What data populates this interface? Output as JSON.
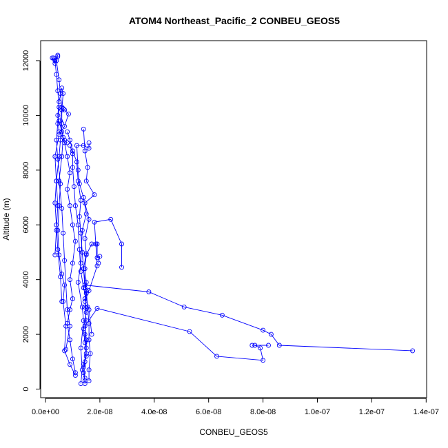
{
  "chart_data": {
    "type": "line",
    "title": "ATOM4 Northeast_Pacific_2 CONBEU_GEOS5",
    "xlabel": "CONBEU_GEOS5",
    "ylabel": "Altitude (m)",
    "xlim": [
      0,
      1.4e-07
    ],
    "ylim": [
      0,
      12000
    ],
    "xticks": [
      0,
      2e-08,
      4e-08,
      6e-08,
      8e-08,
      1e-07,
      1.2e-07,
      1.4e-07
    ],
    "xtick_labels": [
      "0.0e+00",
      "2.0e-08",
      "4.0e-08",
      "6.0e-08",
      "8.0e-08",
      "1.0e-07",
      "1.2e-07",
      "1.4e-07"
    ],
    "yticks": [
      0,
      2000,
      4000,
      6000,
      8000,
      10000,
      12000
    ],
    "ytick_labels": [
      "0",
      "2000",
      "4000",
      "6000",
      "8000",
      "10000",
      "12000"
    ],
    "color": "#0000ff",
    "marker": "open-circle",
    "series": [
      {
        "points": [
          [
            1.45e-08,
            200
          ],
          [
            1.45e-08,
            300
          ],
          [
            1.4e-08,
            600
          ],
          [
            1.45e-08,
            1000
          ],
          [
            1.5e-08,
            1500
          ],
          [
            1.45e-08,
            2000
          ],
          [
            1.5e-08,
            2500
          ],
          [
            1.45e-08,
            3000
          ],
          [
            1.5e-08,
            3500
          ],
          [
            1.45e-08,
            3800
          ],
          [
            3.8e-08,
            3550
          ],
          [
            5.1e-08,
            3000
          ],
          [
            6.5e-08,
            2700
          ],
          [
            8e-08,
            2150
          ],
          [
            8.3e-08,
            2000
          ],
          [
            8.6e-08,
            1600
          ],
          [
            1.35e-07,
            1400
          ]
        ]
      },
      {
        "points": [
          [
            1.45e-08,
            400
          ],
          [
            1.4e-08,
            900
          ],
          [
            1.5e-08,
            1300
          ],
          [
            1.5e-08,
            1800
          ],
          [
            1.45e-08,
            2300
          ],
          [
            1.9e-08,
            2950
          ],
          [
            5.3e-08,
            2100
          ],
          [
            6.3e-08,
            1200
          ],
          [
            8e-08,
            1050
          ],
          [
            7.9e-08,
            1500
          ],
          [
            7.7e-08,
            1600
          ],
          [
            7.6e-08,
            1600
          ],
          [
            8.2e-08,
            1600
          ]
        ]
      },
      {
        "points": [
          [
            1.4e-08,
            800
          ],
          [
            1.5e-08,
            1200
          ],
          [
            1.45e-08,
            1700
          ],
          [
            1.4e-08,
            2200
          ],
          [
            1.5e-08,
            2800
          ],
          [
            1.45e-08,
            3300
          ],
          [
            1.5e-08,
            3900
          ],
          [
            1.45e-08,
            4400
          ],
          [
            1.5e-08,
            4900
          ],
          [
            1.7e-08,
            5300
          ],
          [
            1.9e-08,
            5300
          ],
          [
            1.9e-08,
            4800
          ],
          [
            2e-08,
            4850
          ],
          [
            1.95e-08,
            4600
          ]
        ]
      },
      {
        "points": [
          [
            1.45e-08,
            3200
          ],
          [
            1.6e-08,
            3600
          ],
          [
            1.9e-08,
            4500
          ],
          [
            1.85e-08,
            5300
          ],
          [
            1.8e-08,
            6100
          ],
          [
            2.4e-08,
            6200
          ],
          [
            2.8e-08,
            5300
          ],
          [
            2.8e-08,
            4450
          ]
        ]
      },
      {
        "points": [
          [
            1.45e-08,
            3700
          ],
          [
            1.4e-08,
            4400
          ],
          [
            1.5e-08,
            4950
          ],
          [
            1.45e-08,
            5500
          ],
          [
            1.6e-08,
            6200
          ],
          [
            1.45e-08,
            6800
          ],
          [
            1.8e-08,
            7100
          ],
          [
            1.5e-08,
            7600
          ],
          [
            1.55e-08,
            8100
          ],
          [
            1.45e-08,
            8700
          ],
          [
            1.4e-08,
            9500
          ]
        ]
      },
      {
        "points": [
          [
            1.3e-08,
            200
          ],
          [
            1.35e-08,
            700
          ],
          [
            1.3e-08,
            1500
          ],
          [
            1.4e-08,
            2500
          ],
          [
            1.35e-08,
            3000
          ],
          [
            1.2e-08,
            3900
          ],
          [
            1.3e-08,
            4600
          ],
          [
            1.35e-08,
            5800
          ],
          [
            1.5e-08,
            6400
          ],
          [
            1.4e-08,
            7000
          ],
          [
            1.25e-08,
            7500
          ],
          [
            1.2e-08,
            8000
          ],
          [
            1.15e-08,
            8900
          ],
          [
            1.4e-08,
            8900
          ],
          [
            1.6e-08,
            8800
          ],
          [
            1.6e-08,
            9000
          ]
        ]
      },
      {
        "points": [
          [
            1.6e-08,
            300
          ],
          [
            1.6e-08,
            700
          ],
          [
            1.65e-08,
            1300
          ],
          [
            1.6e-08,
            1800
          ],
          [
            1.6e-08,
            2400
          ],
          [
            1.55e-08,
            3000
          ],
          [
            1.5e-08,
            3600
          ],
          [
            1.4e-08,
            4400
          ],
          [
            1.35e-08,
            5000
          ],
          [
            1.3e-08,
            5700
          ],
          [
            1.25e-08,
            6300
          ],
          [
            1.3e-08,
            6900
          ],
          [
            1.2e-08,
            7600
          ],
          [
            1.15e-08,
            8300
          ],
          [
            1e-08,
            8700
          ],
          [
            9e-09,
            9100
          ],
          [
            8e-09,
            9400
          ]
        ]
      },
      {
        "points": [
          [
            1.1e-08,
            600
          ],
          [
            1e-08,
            1100
          ],
          [
            9e-09,
            1800
          ],
          [
            8e-09,
            2400
          ],
          [
            9e-09,
            2900
          ],
          [
            1e-08,
            3300
          ],
          [
            9e-09,
            4000
          ],
          [
            1e-08,
            4600
          ],
          [
            1.1e-08,
            5400
          ],
          [
            1e-08,
            6000
          ],
          [
            9e-09,
            6700
          ],
          [
            8e-09,
            7300
          ],
          [
            9e-09,
            7900
          ],
          [
            8e-09,
            8500
          ],
          [
            7e-09,
            9000
          ],
          [
            6e-09,
            9400
          ],
          [
            5e-09,
            9800
          ]
        ]
      },
      {
        "points": [
          [
            1.1e-08,
            500
          ],
          [
            9e-09,
            900
          ],
          [
            7e-09,
            1400
          ],
          [
            7.5e-09,
            2300
          ],
          [
            6.5e-09,
            3200
          ],
          [
            7e-09,
            3800
          ],
          [
            6e-09,
            4200
          ],
          [
            5e-09,
            4900
          ],
          [
            4.5e-09,
            5800
          ],
          [
            5e-09,
            6700
          ],
          [
            5.5e-09,
            7500
          ],
          [
            4.5e-09,
            8400
          ],
          [
            4e-09,
            9100
          ],
          [
            4.5e-09,
            9700
          ],
          [
            5e-09,
            10300
          ],
          [
            4.5e-09,
            10900
          ],
          [
            4e-09,
            11500
          ],
          [
            3.5e-09,
            12000
          ],
          [
            4.5e-09,
            12200
          ]
        ]
      },
      {
        "points": [
          [
            7.5e-09,
            1450
          ],
          [
            9e-09,
            2300
          ],
          [
            8e-09,
            2900
          ],
          [
            7e-09,
            4700
          ],
          [
            6.5e-09,
            5700
          ],
          [
            6e-09,
            6600
          ],
          [
            5e-09,
            7600
          ],
          [
            6e-09,
            8500
          ],
          [
            6.5e-09,
            9200
          ],
          [
            5.5e-09,
            9800
          ],
          [
            6e-09,
            10300
          ],
          [
            5.5e-09,
            10800
          ],
          [
            5e-09,
            11300
          ],
          [
            4e-09,
            12000
          ],
          [
            3e-09,
            12100
          ],
          [
            2.5e-09,
            12100
          ],
          [
            3.5e-09,
            11900
          ],
          [
            4.5e-09,
            12150
          ]
        ]
      },
      {
        "points": [
          [
            6e-09,
            3200
          ],
          [
            5.5e-09,
            4100
          ],
          [
            4.5e-09,
            5100
          ],
          [
            4e-09,
            6000
          ],
          [
            3.5e-09,
            6800
          ],
          [
            4e-09,
            7600
          ],
          [
            5e-09,
            8500
          ],
          [
            5.5e-09,
            9100
          ],
          [
            6e-09,
            9700
          ],
          [
            6e-09,
            10200
          ],
          [
            6.5e-09,
            10800
          ],
          [
            6e-09,
            11000
          ],
          [
            5e-09,
            10500
          ],
          [
            4.5e-09,
            10000
          ],
          [
            5e-09,
            9400
          ],
          [
            7e-09,
            9100
          ],
          [
            8e-09,
            9000
          ]
        ]
      },
      {
        "points": [
          [
            3.5e-09,
            4900
          ],
          [
            4e-09,
            5800
          ],
          [
            4.5e-09,
            6700
          ],
          [
            4e-09,
            7600
          ],
          [
            3.5e-09,
            8500
          ],
          [
            5e-09,
            9300
          ],
          [
            7e-09,
            9600
          ],
          [
            8.5e-09,
            10050
          ],
          [
            7e-09,
            10200
          ],
          [
            6.5e-09,
            10250
          ]
        ]
      },
      {
        "points": [
          [
            1.7e-08,
            2000
          ],
          [
            1.6e-08,
            2900
          ],
          [
            1.4e-08,
            3700
          ],
          [
            1.3e-08,
            4300
          ],
          [
            1.25e-08,
            5100
          ],
          [
            1.2e-08,
            6000
          ],
          [
            1.1e-08,
            6700
          ],
          [
            1.05e-08,
            7400
          ],
          [
            1e-08,
            8100
          ],
          [
            1e-08,
            8600
          ],
          [
            9e-09,
            8900
          ]
        ]
      }
    ]
  }
}
